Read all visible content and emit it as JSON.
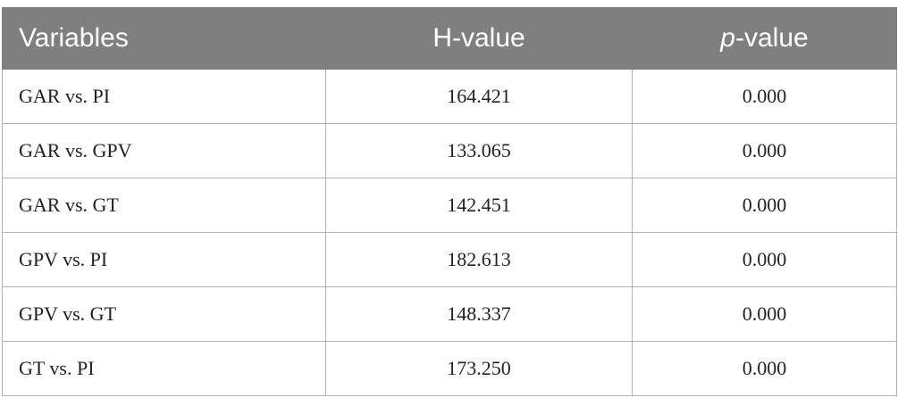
{
  "table": {
    "columns": [
      "Variables",
      "H-value",
      "p-value"
    ],
    "rows": [
      [
        "GAR vs. PI",
        "164.421",
        "0.000"
      ],
      [
        "GAR vs. GPV",
        "133.065",
        "0.000"
      ],
      [
        "GAR vs. GT",
        "142.451",
        "0.000"
      ],
      [
        "GPV vs. PI",
        "182.613",
        "0.000"
      ],
      [
        "GPV vs. GT",
        "148.337",
        "0.000"
      ],
      [
        "GT vs. PI",
        "173.250",
        "0.000"
      ]
    ]
  }
}
